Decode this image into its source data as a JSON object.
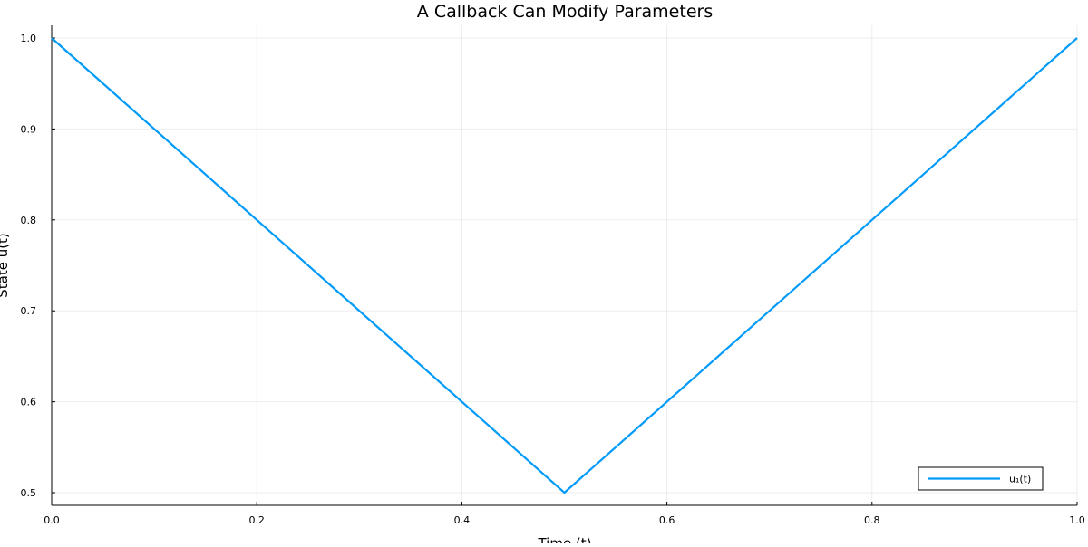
{
  "chart_data": {
    "type": "line",
    "title": "A Callback Can Modify Parameters",
    "xlabel": "Time (t)",
    "ylabel": "State u(t)",
    "xlim": [
      0.0,
      1.0
    ],
    "ylim": [
      0.5,
      1.0
    ],
    "xticks": [
      0.0,
      0.2,
      0.4,
      0.6,
      0.8,
      1.0
    ],
    "xtick_labels": [
      "0.0",
      "0.2",
      "0.4",
      "0.6",
      "0.8",
      "1.0"
    ],
    "yticks": [
      0.5,
      0.6,
      0.7,
      0.8,
      0.9,
      1.0
    ],
    "ytick_labels": [
      "0.5",
      "0.6",
      "0.7",
      "0.8",
      "0.9",
      "1.0"
    ],
    "grid": true,
    "legend_position": "bottom-right",
    "series": [
      {
        "name": "u₁(t)",
        "color": "#009af9",
        "x": [
          0.0,
          0.5,
          1.0
        ],
        "y": [
          1.0,
          0.5,
          1.0
        ]
      }
    ]
  }
}
